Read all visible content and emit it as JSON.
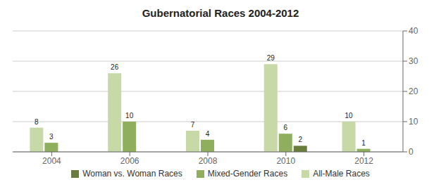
{
  "chart_data": {
    "type": "bar",
    "title": "Gubernatorial Races 2004-2012",
    "categories": [
      "2004",
      "2006",
      "2008",
      "2010",
      "2012"
    ],
    "series": [
      {
        "name": "All-Male Races",
        "color": "#c8d9a8",
        "values": [
          8,
          26,
          7,
          29,
          10
        ]
      },
      {
        "name": "Mixed-Gender Races",
        "color": "#8faf5e",
        "values": [
          3,
          10,
          4,
          6,
          1
        ]
      },
      {
        "name": "Woman vs. Woman Races",
        "color": "#6a7c3a",
        "values": [
          0,
          0,
          0,
          2,
          0
        ]
      }
    ],
    "ylim": [
      0,
      40
    ],
    "yticks": [
      0,
      10,
      20,
      30,
      40
    ],
    "grid": true,
    "legend": "bottom",
    "data_labels": true
  }
}
